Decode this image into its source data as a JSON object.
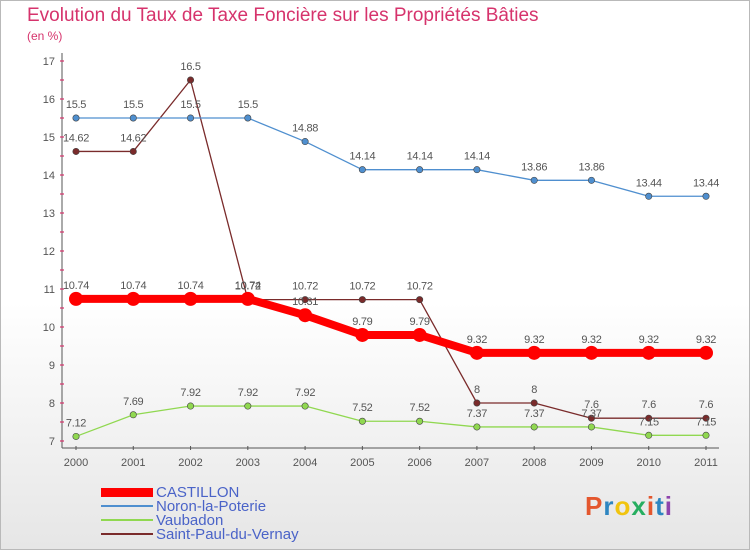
{
  "title": "Evolution du Taux de Taxe Foncière sur les Propriétés Bâties",
  "subtitle": "(en %)",
  "logo": {
    "text": "Proxiti",
    "colors": [
      "#e4572e",
      "#2e86c1",
      "#f1c40f",
      "#27ae60",
      "#e4572e",
      "#2e86c1",
      "#8e44ad"
    ]
  },
  "chart_data": {
    "type": "line",
    "title": "Evolution du Taux de Taxe Foncière sur les Propriétés Bâties",
    "ylabel": "(en %)",
    "xlabel": "",
    "x": [
      "2000",
      "2001",
      "2002",
      "2003",
      "2004",
      "2005",
      "2006",
      "2007",
      "2008",
      "2009",
      "2010",
      "2011"
    ],
    "ylim": [
      7,
      17
    ],
    "yticks": [
      "7",
      "8",
      "9",
      "10",
      "11",
      "12",
      "13",
      "14",
      "15",
      "16",
      "17"
    ],
    "grid": false,
    "legend": "bottom-left",
    "series": [
      {
        "name": "CASTILLON",
        "color": "#ff0000",
        "values": [
          10.74,
          10.74,
          10.74,
          10.74,
          10.31,
          9.79,
          9.79,
          9.32,
          9.32,
          9.32,
          9.32,
          9.32
        ],
        "labels": [
          "10.74",
          "10.74",
          "10.74",
          "10.74",
          "10.31",
          "9.79",
          "9.79",
          "9.32",
          "9.32",
          "9.32",
          "9.32",
          "9.32"
        ]
      },
      {
        "name": "Noron-la-Poterie",
        "color": "#4f8fcf",
        "values": [
          15.5,
          15.5,
          15.5,
          15.5,
          14.88,
          14.14,
          14.14,
          14.14,
          13.86,
          13.86,
          13.44,
          13.44
        ],
        "labels": [
          "15.5",
          "15.5",
          "15.5",
          "15.5",
          "14.88",
          "14.14",
          "14.14",
          "14.14",
          "13.86",
          "13.86",
          "13.44",
          "13.44"
        ]
      },
      {
        "name": "Vaubadon",
        "color": "#90d850",
        "values": [
          7.12,
          7.69,
          7.92,
          7.92,
          7.92,
          7.52,
          7.52,
          7.37,
          7.37,
          7.37,
          7.15,
          7.15
        ],
        "labels": [
          "7.12",
          "7.69",
          "7.92",
          "7.92",
          "7.92",
          "7.52",
          "7.52",
          "7.37",
          "7.37",
          "7.37",
          "7.15",
          "7.15"
        ]
      },
      {
        "name": "Saint-Paul-du-Vernay",
        "color": "#7a2b2b",
        "values": [
          14.62,
          14.62,
          16.5,
          10.72,
          10.72,
          10.72,
          10.72,
          8,
          8,
          7.6,
          7.6,
          7.6
        ],
        "labels": [
          "14.62",
          "14.62",
          "16.5",
          "10.72",
          "10.72",
          "10.72",
          "10.72",
          "8",
          "8",
          "7.6",
          "7.6",
          "7.6"
        ]
      }
    ]
  }
}
